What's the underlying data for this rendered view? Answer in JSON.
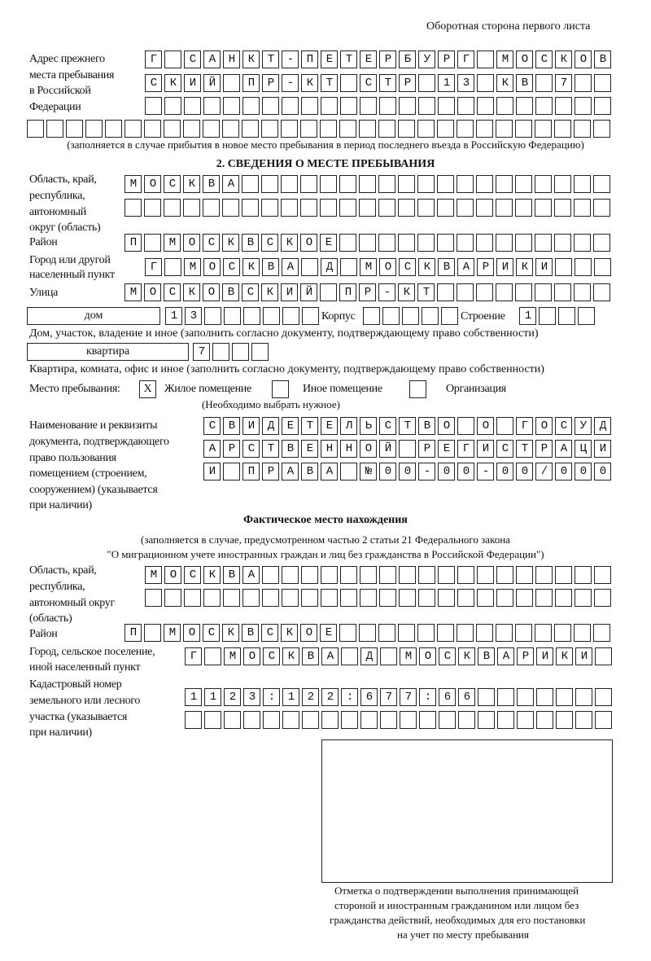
{
  "header": "Оборотная сторона первого листа",
  "prev_address": {
    "label": [
      "Адрес прежнего",
      "места пребывания",
      "в Российской",
      "Федерации"
    ],
    "rows": [
      "Г САНКТ-ПЕТЕРБУРГ МОСКОВ",
      "СКИЙ ПР-КТ СТР 13 КВ 7",
      "",
      ""
    ],
    "note": "(заполняется в случае прибытия в новое место пребывания в период последнего въезда в Российскую Федерацию)"
  },
  "section2": {
    "title": "2. СВЕДЕНИЯ О МЕСТЕ ПРЕБЫВАНИЯ",
    "region_label": [
      "Область, край,",
      "республика,",
      "автономный",
      "округ (область)"
    ],
    "region_rows": [
      "МОСКВА",
      ""
    ],
    "district_label": "Район",
    "district": "П МОСКВСКОЕ",
    "city_label": [
      "Город или другой",
      "населенный пункт"
    ],
    "city": "Г МОСКВА Д МОСКВАРИКИ",
    "street_label": "Улица",
    "street": "МОСКОВСКИЙ ПР-КТ",
    "house_type": "дом",
    "house": "13",
    "korpus_label": "Корпус",
    "korpus": "",
    "building_label": "Строение",
    "building": "1",
    "house_note": "Дом, участок, владение и иное (заполнить согласно документу, подтверждающему право собственности)",
    "apt_type": "квартира",
    "apt": "7",
    "apt_note": "Квартира, комната, офис и иное (заполнить согласно документу, подтверждающему право собственности)",
    "stay_label": "Место пребывания:",
    "stay_options": [
      {
        "label": "Жилое помещение",
        "mark": "X"
      },
      {
        "label": "Иное помещение",
        "mark": ""
      },
      {
        "label": "Организация",
        "mark": ""
      }
    ],
    "stay_note": "(Необходимо выбрать нужное)",
    "doc_label": [
      "Наименование и реквизиты",
      "документа, подтверждающего",
      "право пользования",
      "помещением (строением,",
      "сооружением) (указывается",
      "при наличии)"
    ],
    "doc_rows": [
      "СВИДЕТЕЛЬСТВО О ГОСУД",
      "АРСТВЕННОЙ РЕГИСТРАЦИ",
      "И ПРАВА №00-00-00/000"
    ]
  },
  "actual": {
    "title": "Фактическое место нахождения",
    "note": [
      "(заполняется в случае, предусмотренном частью 2 статьи 21 Федерального закона",
      "\"О миграционном учете иностранных граждан и лиц без гражданства в Российской Федерации\")"
    ],
    "region_label": [
      "Область, край,",
      "республика,",
      "автономный округ",
      "(область)"
    ],
    "region_rows": [
      "МОСКВА",
      ""
    ],
    "district_label": "Район",
    "district": "П МОСКВСКОЕ",
    "city_label": [
      "Город, сельское поселение,",
      "иной населенный пункт"
    ],
    "city": "Г МОСКВА Д МОСКВАРИКИ",
    "cadastre_label": [
      "Кадастровый номер",
      "земельного или лесного",
      "участка (указывается",
      "при наличии)"
    ],
    "cadastre_rows": [
      "1123:122:677:66",
      ""
    ]
  },
  "stamp_caption": [
    "Отметка о подтверждении выполнения принимающей",
    "стороной и иностранным гражданином или лицом без",
    "гражданства действий, необходимых для его постановки",
    "на учет по месту пребывания"
  ]
}
